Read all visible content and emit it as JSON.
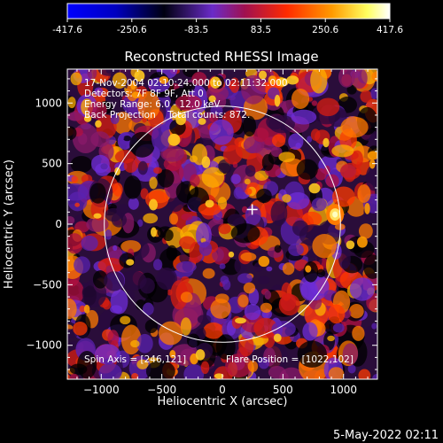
{
  "colorbar": {
    "ticks": [
      -417.6,
      -250.6,
      -83.5,
      83.5,
      250.6,
      417.6
    ],
    "tick_labels": [
      "-417.6",
      "-250.6",
      "-83.5",
      "83.5",
      "250.6",
      "417.6"
    ],
    "colors": [
      "#0000ff",
      "#000000",
      "#7a2bd0",
      "#b01040",
      "#ff2a00",
      "#ff9a00",
      "#ffff60",
      "#ffffff"
    ]
  },
  "chart_data": {
    "type": "heatmap",
    "title": "Reconstructed RHESSI Image",
    "xlabel": "Heliocentric X (arcsec)",
    "ylabel": "Heliocentric Y (arcsec)",
    "xlim": [
      -1280,
      1280
    ],
    "ylim": [
      -1280,
      1280
    ],
    "xticks": [
      -1000,
      -500,
      0,
      500,
      1000
    ],
    "yticks": [
      -1000,
      -500,
      0,
      500,
      1000
    ],
    "xtick_labels": [
      "−1000",
      "−500",
      "0",
      "500",
      "1000"
    ],
    "ytick_labels": [
      "−1000",
      "−500",
      "0",
      "500",
      "1000"
    ],
    "value_range": [
      -417.6,
      417.6
    ],
    "solar_limb_radius": 975,
    "spin_axis_marker": [
      246,
      121
    ],
    "bright_source": [
      930,
      80
    ],
    "info_lines": [
      "17-Nov-2004 02:10:24.000 to 02:11:32.000",
      "Detectors: 7F 8F 9F, Att 0",
      "Energy Range: 6.0 - 12.0 keV",
      "Back Projection    Total counts: 872."
    ],
    "spin_axis_text": "Spin Axis = [246,121]",
    "flare_position_text": "Flare Position = [1022,102]"
  },
  "footer": {
    "date_stamp": "5-May-2022 02:11"
  }
}
